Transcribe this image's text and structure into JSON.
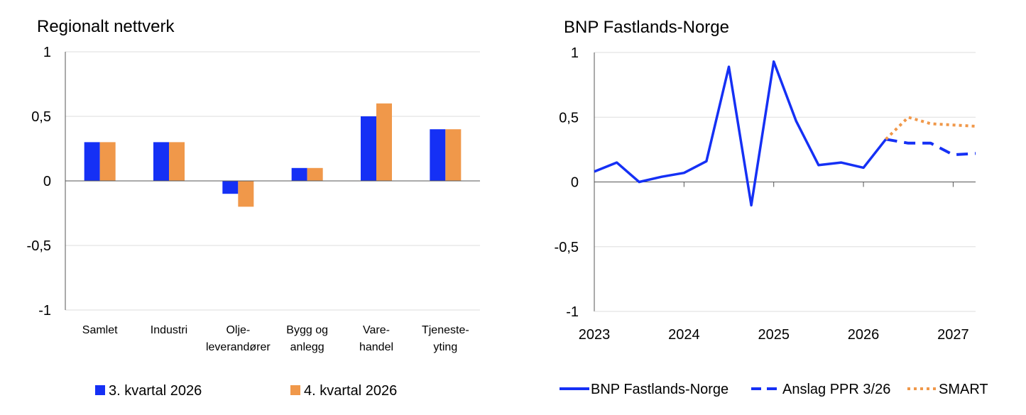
{
  "colors": {
    "blue": "#1530f5",
    "orange": "#f0984a"
  },
  "chart_data": [
    {
      "type": "bar",
      "title": "Regionalt nettverk",
      "categories": [
        [
          "Samlet"
        ],
        [
          "Industri"
        ],
        [
          "Olje-",
          "leverandører"
        ],
        [
          "Bygg og",
          "anlegg"
        ],
        [
          "Vare-",
          "handel"
        ],
        [
          "Tjeneste-",
          "yting"
        ]
      ],
      "series": [
        {
          "name": "3. kvartal 2026",
          "color": "#1530f5",
          "values": [
            0.3,
            0.3,
            -0.1,
            0.1,
            0.5,
            0.4
          ]
        },
        {
          "name": "4. kvartal 2026",
          "color": "#f0984a",
          "values": [
            0.3,
            0.3,
            -0.2,
            0.1,
            0.6,
            0.4
          ]
        }
      ],
      "ylim": [
        -1,
        1
      ],
      "yticks": [
        1,
        0.5,
        0,
        -0.5,
        -1
      ],
      "ytick_labels": [
        "1",
        "0,5",
        "0",
        "-0,5",
        "-1"
      ],
      "grid": true,
      "legend": "bottom"
    },
    {
      "type": "line",
      "title": "BNP Fastlands-Norge",
      "xlim": [
        2023.0,
        2027.25
      ],
      "ylim": [
        -1,
        1
      ],
      "yticks": [
        1,
        0.5,
        0,
        -0.5,
        -1
      ],
      "ytick_labels": [
        "1",
        "0,5",
        "0",
        "-0,5",
        "-1"
      ],
      "xticks": [
        2023,
        2024,
        2025,
        2026,
        2027
      ],
      "xtick_labels": [
        "2023",
        "2024",
        "2025",
        "2026",
        "2027"
      ],
      "grid": true,
      "legend": "bottom",
      "series": [
        {
          "name": "BNP Fastlands-Norge",
          "color": "#1530f5",
          "style": "solid",
          "x": [
            2023.0,
            2023.25,
            2023.5,
            2023.75,
            2024.0,
            2024.25,
            2024.5,
            2024.75,
            2025.0,
            2025.25,
            2025.5,
            2025.75,
            2026.0,
            2026.25
          ],
          "y": [
            0.08,
            0.15,
            0.0,
            0.04,
            0.07,
            0.16,
            0.89,
            -0.18,
            0.93,
            0.47,
            0.13,
            0.15,
            0.11,
            0.33
          ]
        },
        {
          "name": "Anslag PPR 3/26",
          "color": "#1530f5",
          "style": "dashed",
          "x": [
            2026.25,
            2026.5,
            2026.75,
            2027.0,
            2027.25
          ],
          "y": [
            0.33,
            0.3,
            0.3,
            0.21,
            0.22
          ]
        },
        {
          "name": "SMART",
          "color": "#f0984a",
          "style": "dotted",
          "x": [
            2026.25,
            2026.5,
            2026.75,
            2027.0,
            2027.25
          ],
          "y": [
            0.33,
            0.5,
            0.45,
            0.44,
            0.43
          ]
        }
      ]
    }
  ]
}
